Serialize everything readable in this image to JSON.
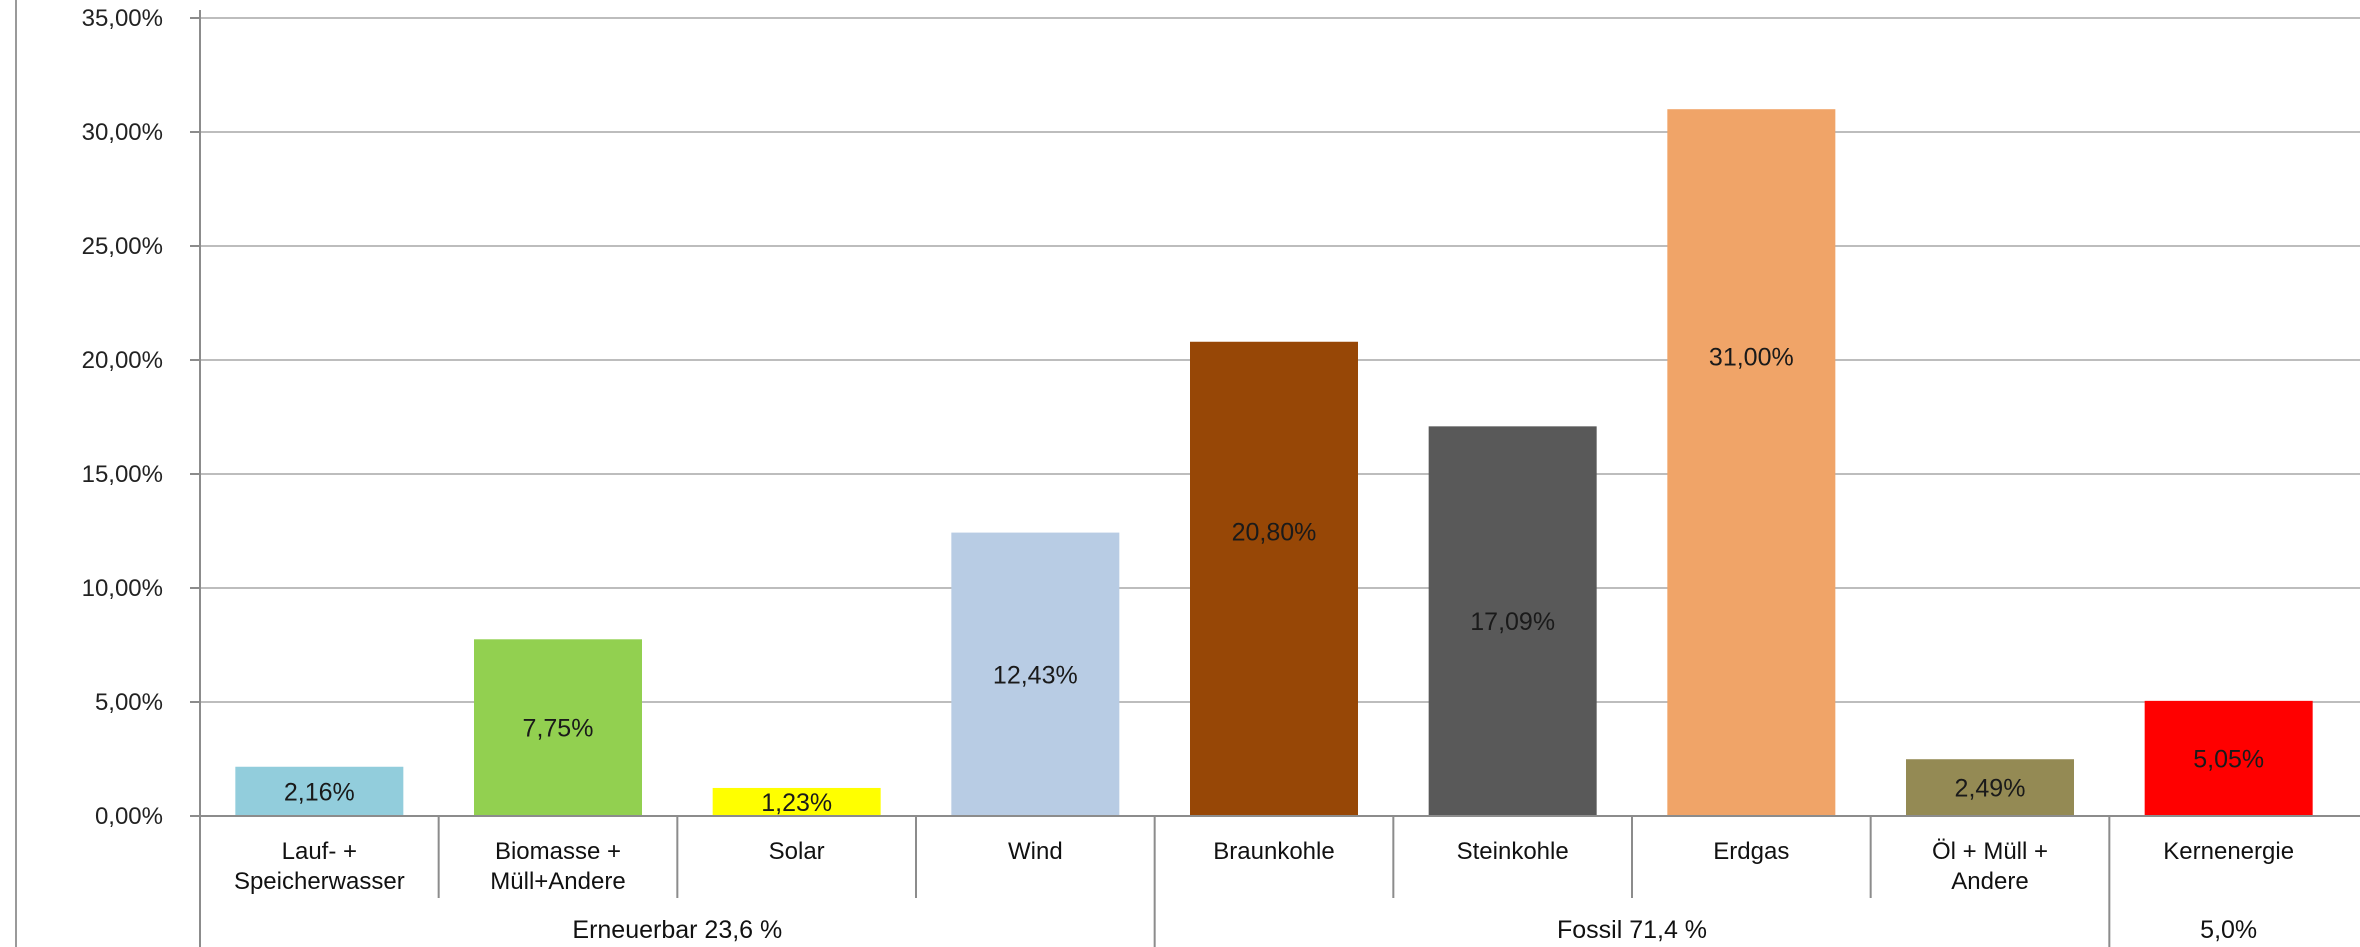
{
  "chart_data": {
    "type": "bar",
    "title": "",
    "xlabel": "",
    "ylabel": "",
    "ylim": [
      0,
      35
    ],
    "grid": true,
    "legend": "none",
    "y_ticks": [
      "0,00%",
      "5,00%",
      "10,00%",
      "15,00%",
      "20,00%",
      "25,00%",
      "30,00%",
      "35,00%"
    ],
    "categories": [
      [
        "Lauf- +",
        "Speicherwasser"
      ],
      [
        "Biomasse +",
        "Müll+Andere"
      ],
      [
        "Solar"
      ],
      [
        "Wind"
      ],
      [
        "Braunkohle"
      ],
      [
        "Steinkohle"
      ],
      [
        "Erdgas"
      ],
      [
        "Öl + Müll +",
        "Andere"
      ],
      [
        "Kernenergie"
      ]
    ],
    "values": [
      2.16,
      7.75,
      1.23,
      12.43,
      20.8,
      17.09,
      31.0,
      2.49,
      5.05
    ],
    "data_labels": [
      "2,16%",
      "7,75%",
      "1,23%",
      "12,43%",
      "20,80%",
      "17,09%",
      "31,00%",
      "2,49%",
      "5,05%"
    ],
    "colors": [
      "#92cddc",
      "#92d050",
      "#ffff00",
      "#b8cce4",
      "#974706",
      "#595959",
      "#f0a468",
      "#948a54",
      "#ff0000"
    ],
    "groups": [
      {
        "label": "Erneuerbar 23,6 %",
        "start": 0,
        "end": 3
      },
      {
        "label": "Fossil 71,4 %",
        "start": 4,
        "end": 7
      },
      {
        "label": "5,0%",
        "start": 8,
        "end": 8
      }
    ]
  }
}
